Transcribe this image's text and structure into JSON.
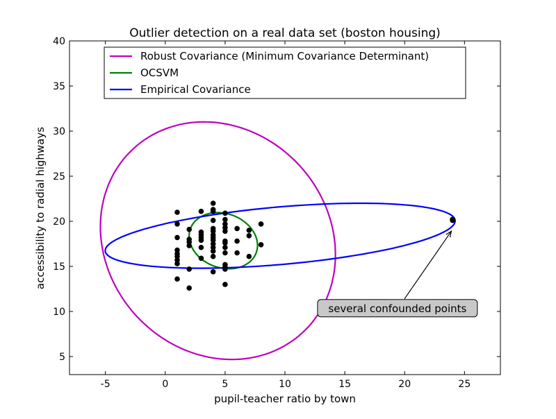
{
  "chart_data": {
    "type": "scatter",
    "title": "Outlier detection on a real data set (boston housing)",
    "xlabel": "pupil-teacher ratio by town",
    "ylabel": "accessibility to radial highways",
    "xlim": [
      -8,
      28
    ],
    "ylim": [
      3,
      40
    ],
    "xticks": [
      -5,
      0,
      5,
      10,
      15,
      20,
      25
    ],
    "yticks": [
      5,
      10,
      15,
      20,
      25,
      30,
      35,
      40
    ],
    "grid": false,
    "legend_position": "top-center",
    "points": [
      [
        1,
        21.0
      ],
      [
        1,
        19.7
      ],
      [
        1,
        18.2
      ],
      [
        1,
        16.8
      ],
      [
        1,
        16.4
      ],
      [
        1,
        16.1
      ],
      [
        1,
        15.7
      ],
      [
        1,
        15.3
      ],
      [
        1,
        13.6
      ],
      [
        2,
        19.1
      ],
      [
        2,
        18.0
      ],
      [
        2,
        17.7
      ],
      [
        2,
        17.3
      ],
      [
        2,
        14.7
      ],
      [
        2,
        12.6
      ],
      [
        3,
        21.1
      ],
      [
        3,
        18.8
      ],
      [
        3,
        18.5
      ],
      [
        3,
        18.2
      ],
      [
        3,
        17.9
      ],
      [
        3,
        17.1
      ],
      [
        3,
        15.9
      ],
      [
        4,
        22.0
      ],
      [
        4,
        21.3
      ],
      [
        4,
        21.1
      ],
      [
        4,
        20.1
      ],
      [
        4,
        19.2
      ],
      [
        4,
        18.9
      ],
      [
        4,
        18.5
      ],
      [
        4,
        18.2
      ],
      [
        4,
        17.9
      ],
      [
        4,
        17.5
      ],
      [
        4,
        17.1
      ],
      [
        4,
        16.7
      ],
      [
        4,
        16.1
      ],
      [
        4,
        14.4
      ],
      [
        5,
        20.9
      ],
      [
        5,
        20.2
      ],
      [
        5,
        19.7
      ],
      [
        5,
        19.3
      ],
      [
        5,
        18.9
      ],
      [
        5,
        17.8
      ],
      [
        5,
        17.6
      ],
      [
        5,
        17.1
      ],
      [
        5,
        16.5
      ],
      [
        5,
        15.2
      ],
      [
        5,
        14.9
      ],
      [
        5,
        14.7
      ],
      [
        5,
        13.0
      ],
      [
        6,
        19.2
      ],
      [
        6,
        17.8
      ],
      [
        6,
        16.5
      ],
      [
        7,
        19.0
      ],
      [
        7,
        18.4
      ],
      [
        7,
        16.1
      ],
      [
        8,
        19.7
      ],
      [
        8,
        17.4
      ],
      [
        24,
        20.2
      ],
      [
        24,
        20.2
      ],
      [
        24,
        20.1
      ]
    ],
    "series": [
      {
        "name": "Robust Covariance (Minimum Covariance Determinant)",
        "color": "#bf00bf",
        "center": [
          4.4,
          17.85
        ],
        "u": [
          9.8,
          -0.75
        ],
        "v": [
          -0.6,
          13.15
        ]
      },
      {
        "name": "OCSVM",
        "color": "#008000",
        "center": [
          4.85,
          17.85
        ],
        "u": [
          2.85,
          -0.3
        ],
        "v": [
          -0.2,
          3.1
        ]
      },
      {
        "name": "Empirical Covariance",
        "color": "#0000ff",
        "center": [
          9.6,
          18.4
        ],
        "u": [
          14.6,
          1.8
        ],
        "v": [
          -0.69,
          3.12
        ]
      }
    ],
    "annotation": {
      "text": "several confounded points",
      "xy": [
        23.9,
        18.9
      ],
      "xytext": [
        19.4,
        10.4
      ]
    }
  }
}
